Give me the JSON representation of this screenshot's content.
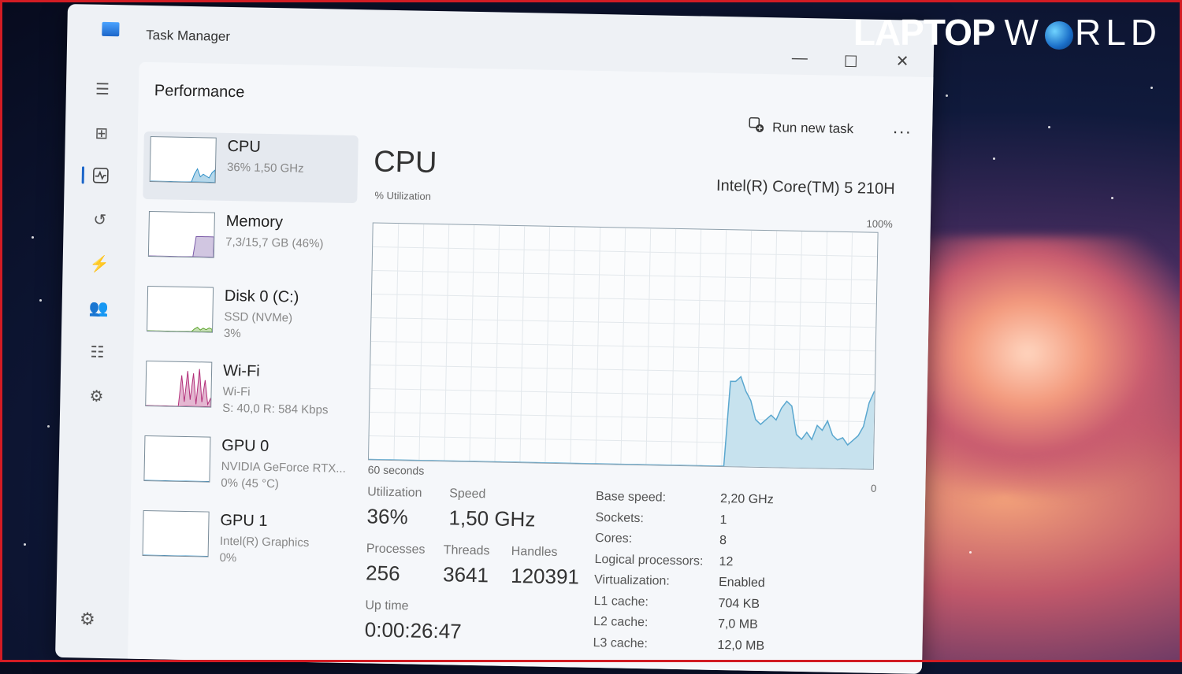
{
  "watermark": {
    "brand_bold": "LAPTOP",
    "brand_light": "W RLD"
  },
  "window": {
    "title": "Task Manager",
    "controls": {
      "minimize": "—",
      "maximize": "☐",
      "close": "✕"
    }
  },
  "header": {
    "page_title": "Performance",
    "run_new_task": "Run new task",
    "more": "..."
  },
  "devices": [
    {
      "name": "CPU",
      "line1": "36%  1,50 GHz",
      "line2": "",
      "line3": "",
      "selected": true,
      "graph_color": "#2f8fc7"
    },
    {
      "name": "Memory",
      "line1": "7,3/15,7 GB (46%)",
      "line2": "",
      "line3": "",
      "selected": false,
      "graph_color": "#7b5ba8"
    },
    {
      "name": "Disk 0 (C:)",
      "line1": "SSD (NVMe)",
      "line2": "3%",
      "line3": "",
      "selected": false,
      "graph_color": "#5fa52f"
    },
    {
      "name": "Wi-Fi",
      "line1": "Wi-Fi",
      "line2": "S: 40,0  R: 584 Kbps",
      "line3": "",
      "selected": false,
      "graph_color": "#b3307a"
    },
    {
      "name": "GPU 0",
      "line1": "NVIDIA GeForce RTX...",
      "line2": "0%  (45 °C)",
      "line3": "",
      "selected": false,
      "graph_color": "#2f8fc7"
    },
    {
      "name": "GPU 1",
      "line1": "Intel(R) Graphics",
      "line2": "0%",
      "line3": "",
      "selected": false,
      "graph_color": "#2f8fc7"
    }
  ],
  "detail": {
    "heading": "CPU",
    "model": "Intel(R) Core(TM) 5 210H",
    "util_label": "% Utilization",
    "max_label": "100%",
    "time_label": "60 seconds",
    "min_label": "0",
    "utilization_history": [
      0,
      0,
      0,
      0,
      0,
      0,
      0,
      0,
      0,
      0,
      0,
      0,
      0,
      0,
      0,
      0,
      0,
      0,
      0,
      0,
      0,
      0,
      0,
      0,
      0,
      0,
      0,
      0,
      0,
      0,
      0,
      0,
      0,
      0,
      0,
      0,
      0,
      0,
      0,
      0,
      0,
      0,
      0,
      0,
      0,
      0,
      0,
      0,
      0,
      0,
      0,
      0,
      0,
      0,
      0,
      0,
      0,
      0,
      0,
      0,
      0,
      0,
      0,
      0,
      0,
      0,
      0,
      0,
      0,
      0,
      36,
      36,
      38,
      32,
      28,
      20,
      18,
      20,
      22,
      20,
      25,
      28,
      26,
      14,
      12,
      15,
      12,
      18,
      16,
      20,
      14,
      12,
      13,
      10,
      12,
      14,
      18,
      28,
      33
    ]
  },
  "stats": {
    "utilization": {
      "label": "Utilization",
      "value": "36%"
    },
    "speed": {
      "label": "Speed",
      "value": "1,50 GHz"
    },
    "processes": {
      "label": "Processes",
      "value": "256"
    },
    "threads": {
      "label": "Threads",
      "value": "3641"
    },
    "handles": {
      "label": "Handles",
      "value": "120391"
    },
    "uptime": {
      "label": "Up time",
      "value": "0:00:26:47"
    }
  },
  "properties": [
    {
      "label": "Base speed:",
      "value": "2,20 GHz"
    },
    {
      "label": "Sockets:",
      "value": "1"
    },
    {
      "label": "Cores:",
      "value": "8"
    },
    {
      "label": "Logical processors:",
      "value": "12"
    },
    {
      "label": "Virtualization:",
      "value": "Enabled"
    },
    {
      "label": "L1 cache:",
      "value": "704 KB"
    },
    {
      "label": "L2 cache:",
      "value": "7,0 MB"
    },
    {
      "label": "L3 cache:",
      "value": "12,0 MB"
    }
  ],
  "nav_icons": [
    "hamburger-icon",
    "processes-icon",
    "performance-icon",
    "app-history-icon",
    "startup-apps-icon",
    "users-icon",
    "details-icon",
    "services-icon",
    "settings-icon"
  ]
}
